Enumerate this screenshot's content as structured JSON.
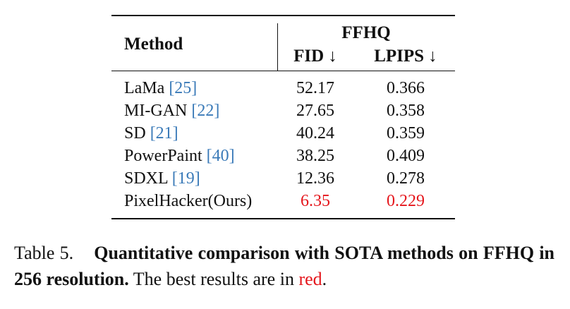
{
  "table": {
    "header": {
      "method": "Method",
      "dataset": "FFHQ",
      "metrics": [
        "FID ↓",
        "LPIPS ↓"
      ]
    },
    "rows": [
      {
        "method": "LaMa",
        "ref": "[25]",
        "fid": "52.17",
        "lpips": "0.366"
      },
      {
        "method": "MI-GAN",
        "ref": "[22]",
        "fid": "27.65",
        "lpips": "0.358"
      },
      {
        "method": "SD",
        "ref": "[21]",
        "fid": "40.24",
        "lpips": "0.359"
      },
      {
        "method": "PowerPaint",
        "ref": "[40]",
        "fid": "38.25",
        "lpips": "0.409"
      },
      {
        "method": "SDXL",
        "ref": "[19]",
        "fid": "12.36",
        "lpips": "0.278"
      },
      {
        "method": "PixelHacker(Ours)",
        "ref": null,
        "fid": "6.35",
        "lpips": "0.229"
      }
    ]
  },
  "caption": {
    "label": "Table 5.",
    "title": "Quantitative comparison with SOTA methods on FFHQ in 256 resolution.",
    "text": "The best results are in",
    "highlight": "red",
    "end": "."
  }
}
